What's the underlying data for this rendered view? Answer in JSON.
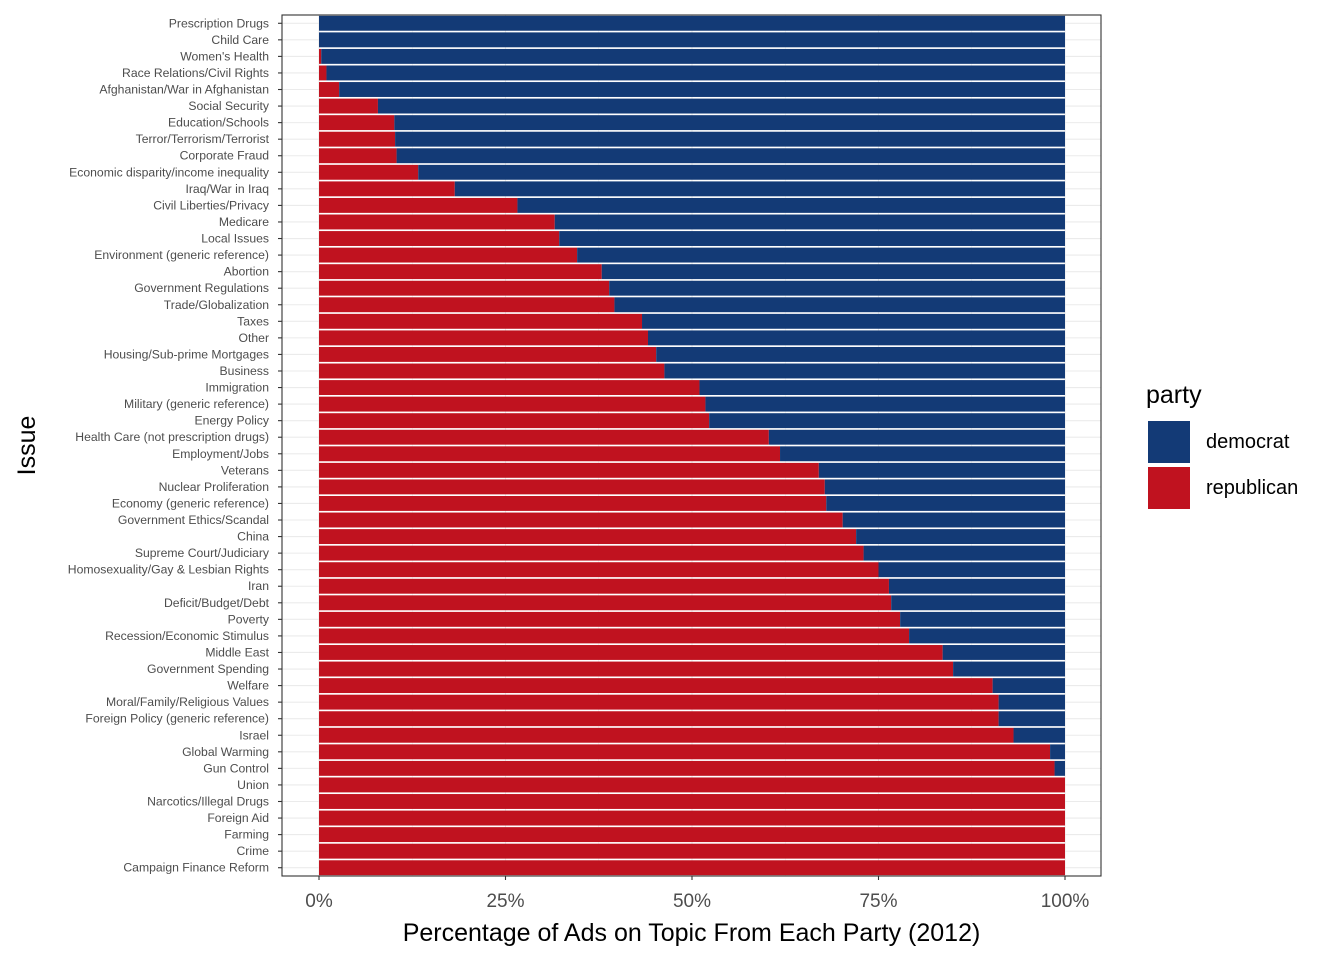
{
  "chart_data": {
    "type": "bar",
    "orientation": "horizontal",
    "stacked": true,
    "normalized": true,
    "xlabel": "Percentage of Ads on Topic From Each Party (2012)",
    "ylabel": "Issue",
    "xlim": [
      0,
      1
    ],
    "xticks": [
      0,
      0.25,
      0.5,
      0.75,
      1.0
    ],
    "xtick_labels": [
      "0%",
      "25%",
      "50%",
      "75%",
      "100%"
    ],
    "grid": true,
    "legend": {
      "title": "party",
      "position": "right",
      "entries": [
        {
          "name": "democrat",
          "color": "#133A76"
        },
        {
          "name": "republican",
          "color": "#C0121F"
        }
      ]
    },
    "categories": [
      "Prescription Drugs",
      "Child Care",
      "Women's Health",
      "Race Relations/Civil Rights",
      "Afghanistan/War in Afghanistan",
      "Social Security",
      "Education/Schools",
      "Terror/Terrorism/Terrorist",
      "Corporate Fraud",
      "Economic disparity/income inequality",
      "Iraq/War in Iraq",
      "Civil Liberties/Privacy",
      "Medicare",
      "Local Issues",
      "Environment (generic reference)",
      "Abortion",
      "Government Regulations",
      "Trade/Globalization",
      "Taxes",
      "Other",
      "Housing/Sub-prime Mortgages",
      "Business",
      "Immigration",
      "Military (generic reference)",
      "Energy Policy",
      "Health Care (not prescription drugs)",
      "Employment/Jobs",
      "Veterans",
      "Nuclear Proliferation",
      "Economy (generic reference)",
      "Government Ethics/Scandal",
      "China",
      "Supreme Court/Judiciary",
      "Homosexuality/Gay & Lesbian Rights",
      "Iran",
      "Deficit/Budget/Debt",
      "Poverty",
      "Recession/Economic Stimulus",
      "Middle East",
      "Government Spending",
      "Welfare",
      "Moral/Family/Religious Values",
      "Foreign Policy (generic reference)",
      "Israel",
      "Global Warming",
      "Gun Control",
      "Union",
      "Narcotics/Illegal Drugs",
      "Foreign Aid",
      "Farming",
      "Crime",
      "Campaign Finance Reform"
    ],
    "series": [
      {
        "name": "republican",
        "values": [
          0.0,
          0.0,
          0.003,
          0.01,
          0.027,
          0.079,
          0.101,
          0.102,
          0.104,
          0.133,
          0.182,
          0.266,
          0.316,
          0.322,
          0.346,
          0.379,
          0.389,
          0.396,
          0.433,
          0.441,
          0.452,
          0.463,
          0.51,
          0.518,
          0.523,
          0.603,
          0.618,
          0.67,
          0.678,
          0.68,
          0.702,
          0.72,
          0.73,
          0.75,
          0.764,
          0.767,
          0.779,
          0.791,
          0.836,
          0.85,
          0.903,
          0.911,
          0.911,
          0.931,
          0.98,
          0.986,
          1.0,
          1.0,
          1.0,
          1.0,
          1.0,
          1.0
        ]
      },
      {
        "name": "democrat",
        "values": [
          1.0,
          1.0,
          0.997,
          0.99,
          0.973,
          0.921,
          0.899,
          0.898,
          0.896,
          0.867,
          0.818,
          0.734,
          0.684,
          0.678,
          0.654,
          0.621,
          0.611,
          0.604,
          0.567,
          0.559,
          0.548,
          0.537,
          0.49,
          0.482,
          0.477,
          0.397,
          0.382,
          0.33,
          0.322,
          0.32,
          0.298,
          0.28,
          0.27,
          0.25,
          0.236,
          0.233,
          0.221,
          0.209,
          0.164,
          0.15,
          0.097,
          0.089,
          0.089,
          0.069,
          0.02,
          0.014,
          0.0,
          0.0,
          0.0,
          0.0,
          0.0,
          0.0
        ]
      }
    ]
  }
}
